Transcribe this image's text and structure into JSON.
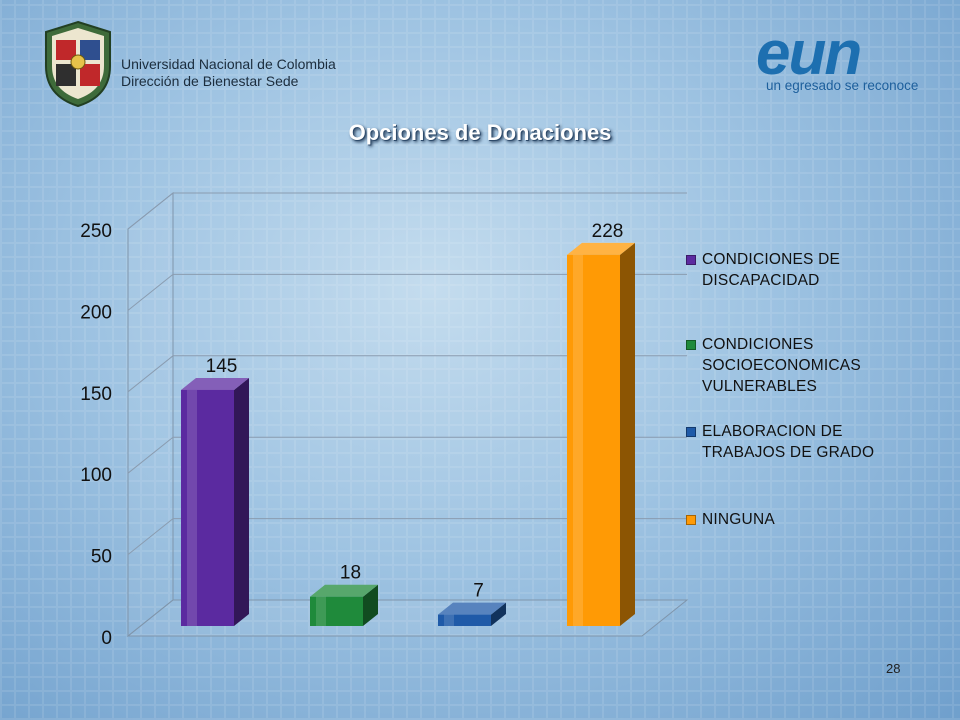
{
  "header": {
    "university_line1": "Universidad Nacional de Colombia",
    "university_line2": "Dirección de Bienestar Sede",
    "logo_text": "eun",
    "logo_tagline": "un egresado se reconoce"
  },
  "page_number": "28",
  "chart_data": {
    "type": "bar",
    "title": "Opciones de Donaciones",
    "categories": [
      "CONDICIONES DE DISCAPACIDAD",
      "CONDICIONES SOCIOECONOMICAS VULNERABLES",
      "ELABORACION DE TRABAJOS DE GRADO",
      "NINGUNA"
    ],
    "values": [
      145,
      18,
      7,
      228
    ],
    "data_labels": [
      "145",
      "18",
      "7",
      "228"
    ],
    "colors": [
      "#5b2aa0",
      "#1f8a3b",
      "#1f5aa8",
      "#ff9a05"
    ],
    "ylim": [
      0,
      250
    ],
    "yticks": [
      "0",
      "50",
      "100",
      "150",
      "200",
      "250"
    ],
    "xlabel": "",
    "ylabel": "",
    "grid": true,
    "style": "3d-columns",
    "legend": {
      "position": "right",
      "lines": [
        [
          "CONDICIONES DE",
          "DISCAPACIDAD"
        ],
        [
          "CONDICIONES",
          "SOCIOECONOMICAS",
          "VULNERABLES"
        ],
        [
          "ELABORACION DE",
          "TRABAJOS DE GRADO"
        ],
        [
          "NINGUNA"
        ]
      ]
    }
  }
}
